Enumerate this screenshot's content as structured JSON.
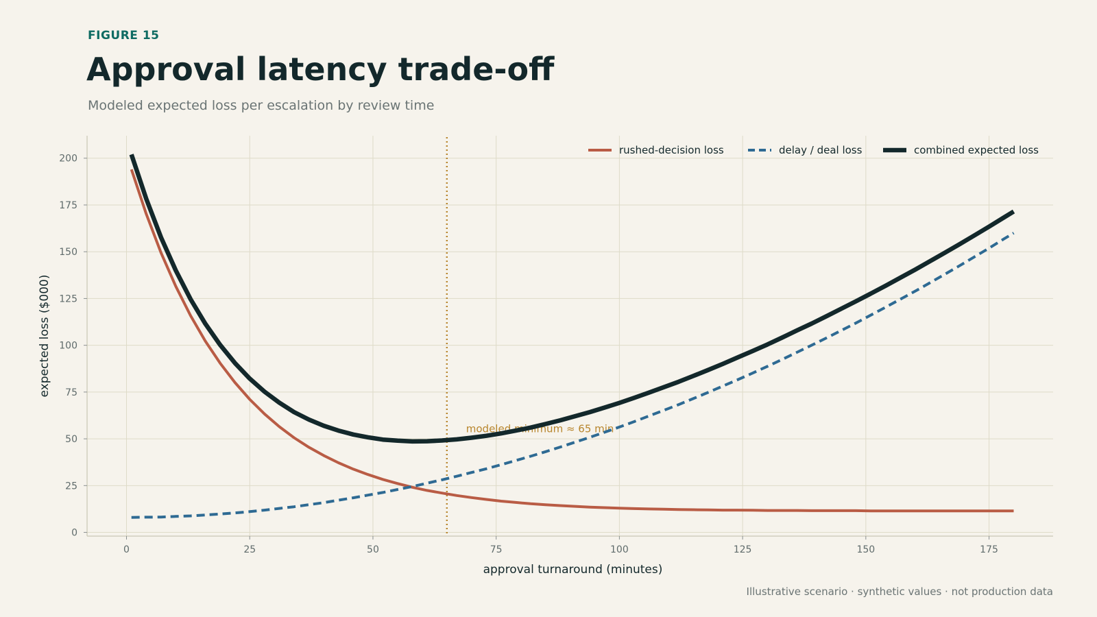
{
  "header": {
    "kicker": "FIGURE 15",
    "title": "Approval latency trade-off",
    "subtitle": "Modeled expected loss per escalation by review time"
  },
  "footnote": "Illustrative scenario · synthetic values · not production data",
  "colors": {
    "background": "#f6f3ec",
    "grid": "#dedbc8",
    "rushed": "#b95c45",
    "delay": "#2e6a93",
    "combined": "#13282b",
    "annotation": "#b8862e",
    "kicker": "#0e6b62"
  },
  "chart_data": {
    "type": "line",
    "xlabel": "approval turnaround (minutes)",
    "ylabel": "expected loss ($000)",
    "xlim": [
      -8,
      188
    ],
    "ylim": [
      -2,
      212
    ],
    "xticks": [
      0,
      25,
      50,
      75,
      100,
      125,
      150,
      175
    ],
    "yticks": [
      0,
      25,
      50,
      75,
      100,
      125,
      150,
      175,
      200
    ],
    "grid": true,
    "legend_position": "top-right",
    "x": [
      1,
      4,
      7,
      10,
      13,
      16,
      19,
      22,
      25,
      28,
      31,
      34,
      37,
      40,
      43,
      46,
      49,
      52,
      55,
      58,
      61,
      64,
      67,
      70,
      73,
      76,
      79,
      82,
      85,
      88,
      91,
      94,
      97,
      100,
      103,
      106,
      109,
      112,
      115,
      118,
      121,
      124,
      127,
      130,
      133,
      136,
      139,
      142,
      145,
      148,
      151,
      154,
      157,
      160,
      163,
      166,
      169,
      172,
      175,
      178,
      180
    ],
    "series": [
      {
        "name": "rushed-decision loss",
        "style": "solid",
        "values": [
          194.0,
          170.2,
          149.5,
          131.5,
          115.8,
          102.2,
          90.4,
          80.1,
          71.1,
          63.3,
          56.5,
          50.6,
          45.5,
          41.1,
          37.2,
          33.8,
          30.9,
          28.3,
          26.1,
          24.1,
          22.4,
          21.0,
          19.7,
          18.6,
          17.6,
          16.7,
          16.0,
          15.3,
          14.8,
          14.3,
          13.9,
          13.5,
          13.2,
          12.9,
          12.7,
          12.5,
          12.4,
          12.2,
          12.1,
          12.0,
          11.9,
          11.9,
          11.8,
          11.7,
          11.7,
          11.7,
          11.6,
          11.6,
          11.6,
          11.6,
          11.5,
          11.5,
          11.5,
          11.5,
          11.5,
          11.5,
          11.5,
          11.5,
          11.5,
          11.5,
          11.5
        ]
      },
      {
        "name": "delay / deal loss",
        "style": "dashed",
        "values": [
          8.0,
          8.1,
          8.2,
          8.5,
          8.8,
          9.3,
          9.8,
          10.4,
          11.1,
          11.9,
          12.8,
          13.7,
          14.8,
          15.9,
          17.2,
          18.5,
          19.9,
          21.3,
          22.9,
          24.5,
          26.3,
          28.1,
          30.0,
          32.0,
          34.0,
          36.2,
          38.4,
          40.7,
          43.1,
          45.6,
          48.2,
          50.8,
          53.5,
          56.3,
          59.2,
          62.2,
          65.2,
          68.3,
          71.5,
          74.8,
          78.2,
          81.6,
          85.1,
          88.7,
          92.4,
          96.2,
          100.0,
          103.9,
          107.9,
          111.9,
          116.1,
          120.3,
          124.6,
          128.9,
          133.4,
          137.9,
          142.5,
          147.2,
          151.9,
          156.8,
          160.0
        ]
      },
      {
        "name": "combined expected loss",
        "style": "solid-bold",
        "values": [
          202.0,
          178.3,
          157.7,
          140.0,
          124.6,
          111.5,
          100.2,
          90.5,
          82.2,
          75.2,
          69.3,
          64.3,
          60.3,
          57.0,
          54.4,
          52.3,
          50.8,
          49.6,
          49.0,
          48.6,
          48.7,
          49.1,
          49.7,
          50.6,
          51.6,
          52.9,
          54.4,
          56.0,
          57.9,
          59.9,
          62.1,
          64.3,
          66.7,
          69.2,
          71.9,
          74.7,
          77.6,
          80.5,
          83.6,
          86.8,
          90.1,
          93.5,
          96.9,
          100.4,
          104.1,
          107.9,
          111.6,
          115.5,
          119.5,
          123.5,
          127.6,
          131.8,
          136.1,
          140.4,
          144.9,
          149.4,
          154.0,
          158.7,
          163.4,
          168.3,
          171.5
        ]
      }
    ],
    "annotations": [
      {
        "type": "vline",
        "x": 65,
        "text": "modeled minimum ≈ 65 min"
      }
    ]
  }
}
